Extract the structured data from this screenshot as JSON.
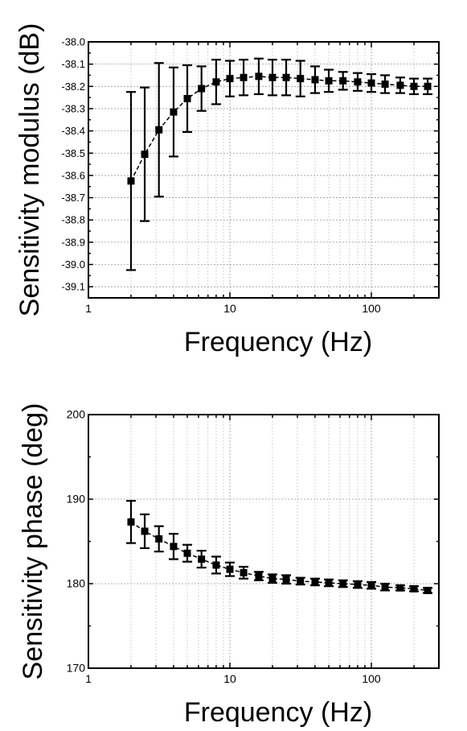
{
  "chart_data": [
    {
      "type": "line",
      "title": "",
      "xlabel": "Frequency (Hz)",
      "ylabel": "Sensitivity modulus (dB)",
      "xscale": "log",
      "xlim": [
        1,
        300
      ],
      "ylim": [
        -39.15,
        -38.0
      ],
      "x_ticks": [
        1,
        10,
        100
      ],
      "x_tick_labels": [
        "1",
        "10",
        "100"
      ],
      "y_ticks": [
        -38.0,
        -38.1,
        -38.2,
        -38.3,
        -38.4,
        -38.5,
        -38.6,
        -38.7,
        -38.8,
        -38.9,
        -39.0,
        -39.1
      ],
      "y_tick_labels": [
        "-38.0",
        "-38.1",
        "-38.2",
        "-38.3",
        "-38.4",
        "-38.5",
        "-38.6",
        "-38.7",
        "-38.8",
        "-38.9",
        "-39.0",
        "-39.1"
      ],
      "grid": true,
      "marker": "square",
      "line_style": "dashed",
      "series": [
        {
          "x": [
            2.0,
            2.5,
            3.15,
            4.0,
            5.0,
            6.3,
            8.0,
            10.0,
            12.5,
            16.0,
            20.0,
            25.0,
            31.5,
            40.0,
            50.0,
            63.0,
            80.0,
            100.0,
            125.0,
            160.0,
            200.0,
            250.0
          ],
          "y": [
            -38.625,
            -38.505,
            -38.395,
            -38.315,
            -38.255,
            -38.21,
            -38.18,
            -38.165,
            -38.16,
            -38.155,
            -38.16,
            -38.16,
            -38.165,
            -38.17,
            -38.175,
            -38.175,
            -38.18,
            -38.185,
            -38.19,
            -38.195,
            -38.2,
            -38.2
          ],
          "err": [
            0.4,
            0.3,
            0.3,
            0.2,
            0.15,
            0.1,
            0.1,
            0.08,
            0.08,
            0.08,
            0.08,
            0.08,
            0.08,
            0.06,
            0.05,
            0.04,
            0.04,
            0.04,
            0.04,
            0.035,
            0.035,
            0.035
          ]
        }
      ]
    },
    {
      "type": "line",
      "title": "",
      "xlabel": "Frequency (Hz)",
      "ylabel": "Sensitivity phase (deg)",
      "xscale": "log",
      "xlim": [
        1,
        300
      ],
      "ylim": [
        170,
        200
      ],
      "x_ticks": [
        1,
        10,
        100
      ],
      "x_tick_labels": [
        "1",
        "10",
        "100"
      ],
      "y_ticks": [
        170,
        180,
        190,
        200
      ],
      "y_tick_labels": [
        "170",
        "180",
        "190",
        "200"
      ],
      "grid": true,
      "marker": "square",
      "line_style": "dashed",
      "series": [
        {
          "x": [
            2.0,
            2.5,
            3.15,
            4.0,
            5.0,
            6.3,
            8.0,
            10.0,
            12.5,
            16.0,
            20.0,
            25.0,
            31.5,
            40.0,
            50.0,
            63.0,
            80.0,
            100.0,
            125.0,
            160.0,
            200.0,
            250.0
          ],
          "y": [
            187.3,
            186.2,
            185.3,
            184.4,
            183.6,
            182.9,
            182.2,
            181.7,
            181.3,
            180.9,
            180.6,
            180.5,
            180.3,
            180.2,
            180.1,
            180.0,
            179.9,
            179.8,
            179.6,
            179.5,
            179.4,
            179.2
          ],
          "err": [
            2.5,
            2.0,
            1.5,
            1.5,
            1.0,
            1.0,
            1.0,
            0.8,
            0.7,
            0.5,
            0.5,
            0.5,
            0.4,
            0.4,
            0.4,
            0.4,
            0.4,
            0.4,
            0.4,
            0.3,
            0.3,
            0.3
          ]
        }
      ]
    }
  ]
}
